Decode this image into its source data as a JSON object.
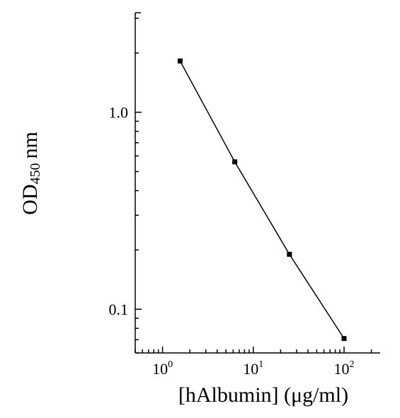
{
  "chart_data": {
    "type": "scatter",
    "xscale": "log",
    "yscale": "log",
    "xlabel": "[hAlbumin] (μg/ml)",
    "ylabel": {
      "main": "OD",
      "subscript": "450",
      "unit": "nm"
    },
    "xlim": [
      0.5,
      250
    ],
    "ylim": [
      0.06,
      3.2
    ],
    "x_ticks": [
      {
        "value": 1,
        "base": "10",
        "exponent": "0"
      },
      {
        "value": 10,
        "base": "10",
        "exponent": "1"
      },
      {
        "value": 100,
        "base": "10",
        "exponent": "2"
      }
    ],
    "y_ticks": [
      {
        "value": 0.1,
        "label": "0.1"
      },
      {
        "value": 1.0,
        "label": "1.0"
      }
    ],
    "grid": false,
    "legend": "none",
    "series": [
      {
        "x": [
          1.5625,
          6.25,
          25,
          100
        ],
        "y": [
          1.82,
          0.56,
          0.19,
          0.071
        ],
        "connected": true,
        "marker": "square"
      }
    ]
  }
}
